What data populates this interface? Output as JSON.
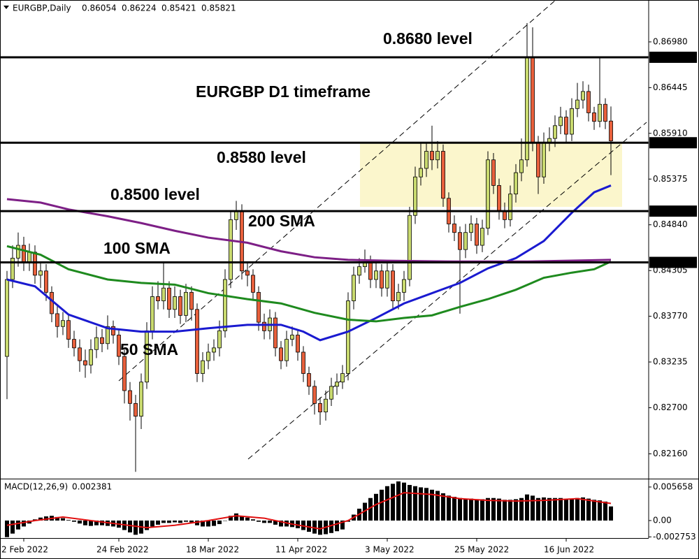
{
  "chart_data": [
    {
      "type": "candlestick",
      "title": "EURGBP,Daily",
      "annotations": [
        "0.8680 level",
        "EURGBP D1 timeframe",
        "0.8580 level",
        "0.8500 level"
      ],
      "up_color": "#c9da6f",
      "down_color": "#e8603c",
      "zone_color": "#fbf6cc",
      "zone": [
        0.8505,
        0.858
      ],
      "ylim": [
        0.8187,
        0.8747
      ],
      "yticks": [
        {
          "value": 0.8698,
          "label": "0.86980"
        },
        0.86445,
        {
          "value": 0.8591,
          "label": "0.85910"
        },
        0.85375,
        {
          "value": 0.8484,
          "label": "0.84840"
        },
        0.84305,
        {
          "value": 0.8377,
          "label": "0.83770"
        },
        0.83235,
        {
          "value": 0.827,
          "label": "0.82700"
        },
        {
          "value": 0.8216,
          "label": "0.82160"
        }
      ],
      "levels": [
        {
          "value": 0.868,
          "label": "0.86800"
        },
        {
          "value": 0.858,
          "label": "0.85800"
        },
        {
          "value": 0.85,
          "label": "0.85000"
        },
        {
          "value": 0.844,
          "label": "0.84400"
        }
      ],
      "categories": [
        null,
        null,
        null,
        "2 Feb 2022",
        null,
        null,
        null,
        null,
        null,
        null,
        null,
        null,
        null,
        null,
        null,
        null,
        null,
        null,
        null,
        null,
        "24 Feb 2022",
        null,
        null,
        null,
        null,
        null,
        null,
        null,
        null,
        null,
        null,
        null,
        null,
        null,
        null,
        null,
        "18 Mar 2022",
        null,
        null,
        null,
        null,
        null,
        null,
        null,
        null,
        null,
        null,
        null,
        null,
        null,
        null,
        null,
        "11 Apr 2022",
        null,
        null,
        null,
        null,
        null,
        null,
        null,
        null,
        null,
        null,
        null,
        null,
        null,
        null,
        null,
        "3 May 2022",
        null,
        null,
        null,
        null,
        null,
        null,
        null,
        null,
        null,
        null,
        null,
        null,
        null,
        null,
        null,
        "25 May 2022",
        null,
        null,
        null,
        null,
        null,
        null,
        null,
        null,
        null,
        null,
        null,
        null,
        null,
        null,
        null,
        "16 Jun 2022",
        null,
        null,
        null,
        null,
        null,
        null,
        null,
        null
      ],
      "ohlc": [
        [
          0.833,
          0.843,
          0.828,
          0.842
        ],
        [
          0.842,
          0.846,
          0.841,
          0.8445
        ],
        [
          0.8445,
          0.8475,
          0.8435,
          0.846
        ],
        [
          0.846,
          0.847,
          0.843,
          0.844
        ],
        [
          0.844,
          0.8462,
          0.843,
          0.8452
        ],
        [
          0.8452,
          0.846,
          0.8415,
          0.8425
        ],
        [
          0.8425,
          0.844,
          0.841,
          0.843
        ],
        [
          0.843,
          0.8438,
          0.8395,
          0.8405
        ],
        [
          0.8405,
          0.8412,
          0.837,
          0.838
        ],
        [
          0.838,
          0.839,
          0.8352,
          0.8365
        ],
        [
          0.8365,
          0.8382,
          0.8355,
          0.8372
        ],
        [
          0.8372,
          0.838,
          0.834,
          0.835
        ],
        [
          0.835,
          0.836,
          0.833,
          0.834
        ],
        [
          0.834,
          0.835,
          0.8312,
          0.8325
        ],
        [
          0.8325,
          0.8338,
          0.8305,
          0.832
        ],
        [
          0.832,
          0.835,
          0.831,
          0.8338
        ],
        [
          0.8338,
          0.8365,
          0.8328,
          0.8352
        ],
        [
          0.8352,
          0.8362,
          0.8335,
          0.8345
        ],
        [
          0.8345,
          0.8378,
          0.8338,
          0.8365
        ],
        [
          0.8365,
          0.8372,
          0.8345,
          0.8355
        ],
        [
          0.8355,
          0.8362,
          0.832,
          0.833
        ],
        [
          0.833,
          0.8338,
          0.8275,
          0.829
        ],
        [
          0.829,
          0.83,
          0.8255,
          0.8275
        ],
        [
          0.8275,
          0.8285,
          0.8195,
          0.826
        ],
        [
          0.826,
          0.831,
          0.8245,
          0.83
        ],
        [
          0.83,
          0.837,
          0.8292,
          0.836
        ],
        [
          0.836,
          0.8412,
          0.835,
          0.84
        ],
        [
          0.84,
          0.8418,
          0.8385,
          0.8395
        ],
        [
          0.8395,
          0.844,
          0.8385,
          0.841
        ],
        [
          0.841,
          0.8418,
          0.8375,
          0.8385
        ],
        [
          0.8385,
          0.8412,
          0.8375,
          0.84
        ],
        [
          0.84,
          0.8408,
          0.8368,
          0.8378
        ],
        [
          0.8378,
          0.8415,
          0.837,
          0.8405
        ],
        [
          0.8405,
          0.8412,
          0.8372,
          0.8385
        ],
        [
          0.8385,
          0.8392,
          0.83,
          0.831
        ],
        [
          0.831,
          0.8335,
          0.83,
          0.8325
        ],
        [
          0.8325,
          0.8345,
          0.8315,
          0.8335
        ],
        [
          0.8335,
          0.835,
          0.8325,
          0.834
        ],
        [
          0.834,
          0.8372,
          0.833,
          0.836
        ],
        [
          0.836,
          0.8432,
          0.8352,
          0.842
        ],
        [
          0.842,
          0.85,
          0.841,
          0.849
        ],
        [
          0.849,
          0.8512,
          0.8478,
          0.85
        ],
        [
          0.85,
          0.8508,
          0.842,
          0.843
        ],
        [
          0.843,
          0.844,
          0.8412,
          0.8425
        ],
        [
          0.8425,
          0.8432,
          0.8395,
          0.8405
        ],
        [
          0.8405,
          0.8412,
          0.836,
          0.837
        ],
        [
          0.837,
          0.838,
          0.835,
          0.836
        ],
        [
          0.836,
          0.8385,
          0.835,
          0.8375
        ],
        [
          0.8375,
          0.8382,
          0.833,
          0.834
        ],
        [
          0.834,
          0.8348,
          0.8315,
          0.8325
        ],
        [
          0.8325,
          0.836,
          0.8318,
          0.835
        ],
        [
          0.835,
          0.8365,
          0.8342,
          0.8355
        ],
        [
          0.8355,
          0.8362,
          0.8325,
          0.8335
        ],
        [
          0.8335,
          0.8342,
          0.83,
          0.831
        ],
        [
          0.831,
          0.8318,
          0.8285,
          0.8295
        ],
        [
          0.8295,
          0.8302,
          0.8262,
          0.8275
        ],
        [
          0.8275,
          0.8282,
          0.825,
          0.8265
        ],
        [
          0.8265,
          0.829,
          0.8255,
          0.828
        ],
        [
          0.828,
          0.8305,
          0.8272,
          0.8295
        ],
        [
          0.8295,
          0.831,
          0.8285,
          0.83
        ],
        [
          0.83,
          0.832,
          0.8292,
          0.831
        ],
        [
          0.831,
          0.8405,
          0.8302,
          0.8395
        ],
        [
          0.8395,
          0.8435,
          0.8385,
          0.8425
        ],
        [
          0.8425,
          0.8445,
          0.8415,
          0.8435
        ],
        [
          0.8435,
          0.8455,
          0.8428,
          0.844
        ],
        [
          0.844,
          0.8448,
          0.841,
          0.842
        ],
        [
          0.842,
          0.844,
          0.841,
          0.843
        ],
        [
          0.843,
          0.8438,
          0.84,
          0.841
        ],
        [
          0.841,
          0.844,
          0.84,
          0.843
        ],
        [
          0.843,
          0.8438,
          0.8385,
          0.8395
        ],
        [
          0.8395,
          0.8415,
          0.8385,
          0.8405
        ],
        [
          0.8405,
          0.843,
          0.8395,
          0.842
        ],
        [
          0.842,
          0.8505,
          0.8412,
          0.8495
        ],
        [
          0.8495,
          0.8552,
          0.8485,
          0.854
        ],
        [
          0.854,
          0.858,
          0.853,
          0.855
        ],
        [
          0.855,
          0.858,
          0.854,
          0.857
        ],
        [
          0.857,
          0.86,
          0.8548,
          0.856
        ],
        [
          0.856,
          0.8582,
          0.855,
          0.857
        ],
        [
          0.857,
          0.8578,
          0.8505,
          0.8515
        ],
        [
          0.8515,
          0.8522,
          0.8475,
          0.8485
        ],
        [
          0.8485,
          0.8495,
          0.8465,
          0.8475
        ],
        [
          0.8475,
          0.8482,
          0.838,
          0.8455
        ],
        [
          0.8455,
          0.8485,
          0.8445,
          0.8475
        ],
        [
          0.8475,
          0.8495,
          0.8465,
          0.8485
        ],
        [
          0.8485,
          0.8492,
          0.845,
          0.846
        ],
        [
          0.846,
          0.849,
          0.8452,
          0.848
        ],
        [
          0.848,
          0.857,
          0.8472,
          0.856
        ],
        [
          0.856,
          0.8568,
          0.852,
          0.853
        ],
        [
          0.853,
          0.8538,
          0.849,
          0.85
        ],
        [
          0.85,
          0.851,
          0.848,
          0.849
        ],
        [
          0.849,
          0.853,
          0.8482,
          0.852
        ],
        [
          0.852,
          0.8555,
          0.851,
          0.8545
        ],
        [
          0.8545,
          0.8585,
          0.8535,
          0.856
        ],
        [
          0.856,
          0.872,
          0.8552,
          0.868
        ],
        [
          0.868,
          0.8715,
          0.857,
          0.858
        ],
        [
          0.858,
          0.8588,
          0.852,
          0.854
        ],
        [
          0.854,
          0.8592,
          0.8532,
          0.858
        ],
        [
          0.858,
          0.8598,
          0.857,
          0.8585
        ],
        [
          0.8585,
          0.8612,
          0.8575,
          0.86
        ],
        [
          0.86,
          0.8622,
          0.859,
          0.861
        ],
        [
          0.861,
          0.8618,
          0.858,
          0.859
        ],
        [
          0.859,
          0.8632,
          0.8582,
          0.862
        ],
        [
          0.862,
          0.865,
          0.861,
          0.863
        ],
        [
          0.863,
          0.8652,
          0.862,
          0.864
        ],
        [
          0.864,
          0.8648,
          0.8605,
          0.8615
        ],
        [
          0.8615,
          0.8622,
          0.8595,
          0.8605
        ],
        [
          0.8605,
          0.868,
          0.8598,
          0.8625
        ],
        [
          0.8625,
          0.8632,
          0.8596,
          0.8605
        ],
        [
          0.86054,
          0.86224,
          0.85421,
          0.85821
        ]
      ],
      "series": [
        {
          "name": "50 SMA",
          "color": "#1a1ad0",
          "x": [
            0,
            5,
            11,
            18,
            24,
            30,
            36,
            43,
            49,
            53,
            56,
            61,
            66,
            71,
            76,
            81,
            86,
            91,
            96,
            101,
            105,
            108
          ],
          "values": [
            0.842,
            0.8412,
            0.8379,
            0.8363,
            0.8359,
            0.8359,
            0.8363,
            0.8367,
            0.8367,
            0.8359,
            0.8349,
            0.8359,
            0.8375,
            0.8392,
            0.8404,
            0.8416,
            0.8433,
            0.8445,
            0.8465,
            0.8498,
            0.8522,
            0.853
          ]
        },
        {
          "name": "100 SMA",
          "color": "#1e8a1e",
          "x": [
            0,
            6,
            11,
            18,
            24,
            30,
            36,
            43,
            49,
            55,
            61,
            66,
            71,
            76,
            81,
            86,
            91,
            96,
            101,
            105,
            108
          ],
          "values": [
            0.8459,
            0.8449,
            0.8432,
            0.842,
            0.8416,
            0.8414,
            0.8404,
            0.8397,
            0.8392,
            0.8381,
            0.8373,
            0.8371,
            0.8375,
            0.8378,
            0.8388,
            0.8397,
            0.8408,
            0.8422,
            0.8428,
            0.8432,
            0.8441
          ]
        },
        {
          "name": "200 SMA",
          "color": "#7d1f86",
          "x": [
            0,
            6,
            11,
            18,
            24,
            30,
            36,
            43,
            49,
            55,
            61,
            68,
            80,
            93,
            108
          ],
          "values": [
            0.8514,
            0.851,
            0.8502,
            0.8494,
            0.8486,
            0.8477,
            0.8469,
            0.8463,
            0.8453,
            0.8446,
            0.8443,
            0.8442,
            0.8441,
            0.8441,
            0.8443
          ]
        }
      ]
    },
    {
      "type": "macd",
      "title": "MACD(12,26,9)",
      "ylim": [
        -0.00295,
        0.00695
      ],
      "yticks": [
        0.005658,
        {
          "value": 0,
          "label": "0.00"
        },
        -0.002753
      ],
      "series": [
        {
          "kind": "bar",
          "color": "#000000",
          "values": [
            -0.0028,
            -0.0022,
            -0.0015,
            -0.001,
            -0.0005,
            0.0002,
            0.0005,
            0.0007,
            0.0008,
            0.0006,
            0.0004,
            0.0001,
            -0.0002,
            -0.0005,
            -0.0008,
            -0.0009,
            -0.0008,
            -0.0008,
            -0.0009,
            -0.001,
            -0.0012,
            -0.0016,
            -0.002,
            -0.0024,
            -0.0022,
            -0.0016,
            -0.001,
            -0.0007,
            -0.0004,
            -0.0004,
            -0.0003,
            -0.0004,
            -0.0002,
            -0.0003,
            -0.0008,
            -0.001,
            -0.001,
            -0.0009,
            -0.0006,
            0,
            0.0008,
            0.0012,
            0.0008,
            0.0005,
            0.0002,
            -0.0002,
            -0.0004,
            -0.0004,
            -0.0007,
            -0.001,
            -0.001,
            -0.0011,
            -0.0013,
            -0.0016,
            -0.0019,
            -0.0022,
            -0.0024,
            -0.0023,
            -0.0021,
            -0.0018,
            -0.0015,
            -0.0002,
            0.001,
            0.002,
            0.003,
            0.0038,
            0.0045,
            0.0052,
            0.0058,
            0.0062,
            0.0066,
            0.0064,
            0.006,
            0.0058,
            0.0056,
            0.0055,
            0.0052,
            0.005,
            0.0046,
            0.0042,
            0.004,
            0.0038,
            0.0037,
            0.0037,
            0.0036,
            0.0036,
            0.0038,
            0.0038,
            0.0037,
            0.0035,
            0.0035,
            0.0036,
            0.0038,
            0.0044,
            0.0042,
            0.0038,
            0.0039,
            0.0038,
            0.0038,
            0.0038,
            0.0036,
            0.0037,
            0.0038,
            0.0039,
            0.0037,
            0.0035,
            0.0034,
            0.0032,
            0.002381
          ]
        },
        {
          "kind": "line",
          "color": "#e01010",
          "x": [
            0,
            5,
            10,
            15,
            20,
            25,
            30,
            36,
            41,
            46,
            51,
            56,
            61,
            66,
            71,
            76,
            81,
            86,
            91,
            96,
            102,
            108
          ],
          "values": [
            -0.0008,
            0,
            0.0006,
            0,
            -0.0006,
            -0.0012,
            -0.0008,
            0,
            0.0008,
            0.0004,
            -0.0006,
            -0.0014,
            0,
            0.0027,
            0.0047,
            0.0044,
            0.0037,
            0.0034,
            0.0033,
            0.0034,
            0.0037,
            0.002889
          ]
        }
      ]
    }
  ]
}
